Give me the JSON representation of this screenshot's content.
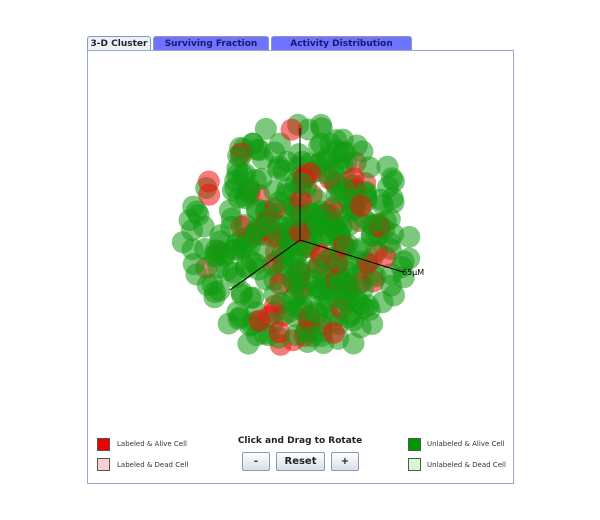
{
  "tabs": [
    "3-D Cluster",
    "Surviving Fraction Curve",
    "Activity Distribution Histogram"
  ],
  "axis_label": "65μM",
  "legend": {
    "labeled_alive": "Labeled & Alive Cell",
    "labeled_dead": "Labeled & Dead Cell",
    "unlabeled_alive": "Unlabeled & Alive Cell",
    "unlabeled_dead": "Unlabeled & Dead Cell"
  },
  "instruction": "Click and Drag to Rotate",
  "buttons": [
    "-",
    "Reset",
    "+"
  ]
}
